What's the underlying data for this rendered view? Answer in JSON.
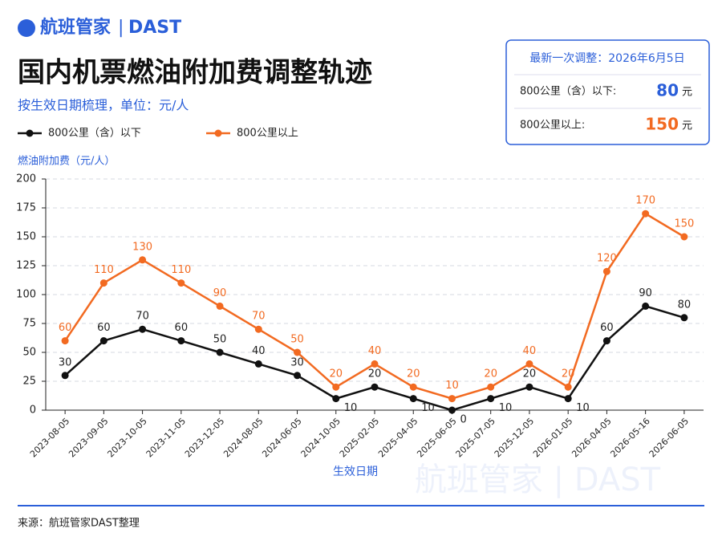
{
  "header": {
    "logo": "航班管家",
    "brand": "DAST"
  },
  "info_box": {
    "title": "最新一次调整：2026年6月5日",
    "rows": [
      {
        "label": "800公里（含）以下:",
        "value": 80,
        "unit": "元"
      },
      {
        "label": "800公里以上:",
        "value": 150,
        "unit": "元"
      }
    ]
  },
  "footer": "来源：航班管家DAST整理",
  "chart_data": {
    "type": "line",
    "title": "国内机票燃油附加费调整轨迹",
    "subtitle": "按生效日期梳理，单位：元/人",
    "y_label": "燃油附加费（元/人）",
    "x_label": "生效日期",
    "categories": [
      "2023-08-05",
      "2023-09-05",
      "2023-10-05",
      "2023-11-05",
      "2023-12-05",
      "2024-08-05",
      "2024-06-05",
      "2024-10-05",
      "2025-02-05",
      "2025-04-05",
      "2025-06-05",
      "2025-07-05",
      "2025-12-05",
      "2026-01-05",
      "2026-04-05",
      "2026-05-16",
      "2026-06-05"
    ],
    "series": [
      {
        "name": "800公里（含）以下",
        "color": "#111111",
        "values": [
          30,
          60,
          70,
          60,
          50,
          40,
          30,
          10,
          20,
          10,
          0,
          10,
          20,
          10,
          60,
          90,
          80
        ]
      },
      {
        "name": "800公里以上",
        "color": "#f26a21",
        "values": [
          60,
          110,
          130,
          110,
          90,
          70,
          50,
          20,
          40,
          20,
          10,
          20,
          40,
          20,
          120,
          170,
          150
        ]
      }
    ],
    "ylim": [
      0,
      200
    ],
    "yticks": [
      0,
      25,
      50,
      75,
      100,
      125,
      150,
      175,
      200
    ],
    "grid": true
  }
}
